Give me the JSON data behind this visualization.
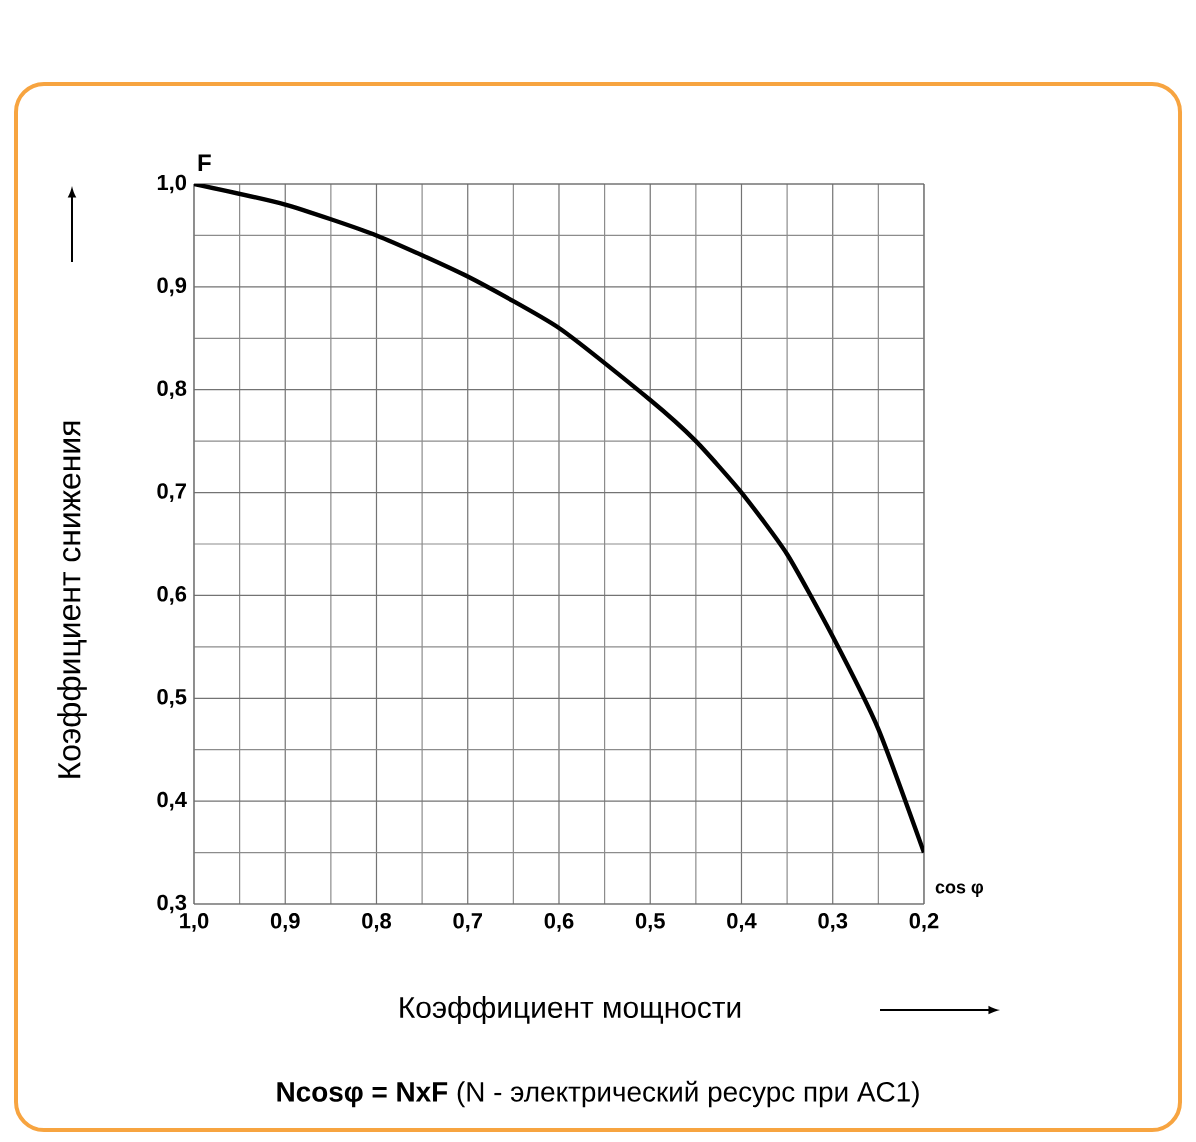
{
  "chart_data": {
    "type": "line",
    "xlabel": "Коэффициент мощности",
    "ylabel": "Коэффициент снижения",
    "annotations": [
      "F",
      "cos φ",
      "**Ncosφ = NxF**   (N - электрический ресурс при AC1)"
    ],
    "x": [
      1.0,
      0.9,
      0.8,
      0.7,
      0.6,
      0.5,
      0.45,
      0.4,
      0.35,
      0.3,
      0.25,
      0.2
    ],
    "series": [
      {
        "color": "#000000",
        "values": [
          1.0,
          0.98,
          0.95,
          0.91,
          0.86,
          0.79,
          0.75,
          0.7,
          0.64,
          0.56,
          0.47,
          0.35
        ]
      }
    ],
    "xlim": [
      1.0,
      0.2
    ],
    "ylim": [
      0.3,
      1.0
    ],
    "xticks": [
      {
        "value": 1.0,
        "label": "1,0"
      },
      {
        "value": 0.9,
        "label": "0,9"
      },
      {
        "value": 0.8,
        "label": "0,8"
      },
      {
        "value": 0.7,
        "label": "0,7"
      },
      {
        "value": 0.6,
        "label": "0,6"
      },
      {
        "value": 0.5,
        "label": "0,5"
      },
      {
        "value": 0.4,
        "label": "0,4"
      },
      {
        "value": 0.3,
        "label": "0,3"
      },
      {
        "value": 0.2,
        "label": "0,2"
      }
    ],
    "yticks": [
      {
        "value": 0.3,
        "label": "0,3"
      },
      {
        "value": 0.4,
        "label": "0,4"
      },
      {
        "value": 0.5,
        "label": "0,5"
      },
      {
        "value": 0.6,
        "label": "0,6"
      },
      {
        "value": 0.7,
        "label": "0,7"
      },
      {
        "value": 0.8,
        "label": "0,8"
      },
      {
        "value": 0.9,
        "label": "0,9"
      },
      {
        "value": 1.0,
        "label": "1,0"
      }
    ],
    "grid": true,
    "marker": "none",
    "line_style": "solid"
  }
}
